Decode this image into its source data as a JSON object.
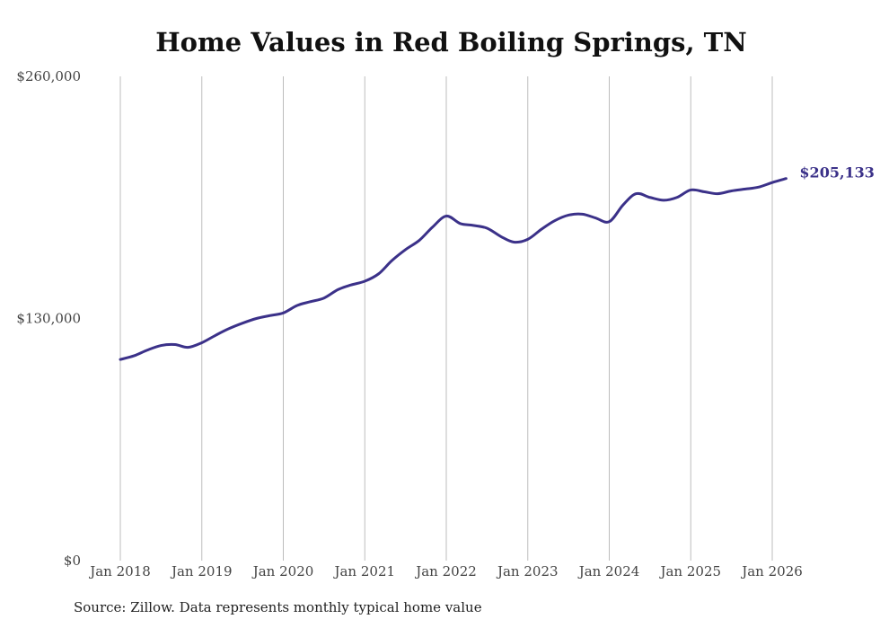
{
  "chart_data": {
    "type": "line",
    "title": "Home Values in Red Boiling Springs, TN",
    "xlabel": "",
    "ylabel": "",
    "ylim": [
      0,
      260000
    ],
    "y_ticks": [
      0,
      130000,
      260000
    ],
    "y_tick_labels": [
      "$0",
      "$130,000",
      "$260,000"
    ],
    "x_ticks": [
      "Jan 2018",
      "Jan 2019",
      "Jan 2020",
      "Jan 2021",
      "Jan 2022",
      "Jan 2023",
      "Jan 2024",
      "Jan 2025",
      "Jan 2026"
    ],
    "x_tick_positions": [
      2018,
      2019,
      2020,
      2021,
      2022,
      2023,
      2024,
      2025,
      2026
    ],
    "grid": "vertical",
    "line_color": "#3b3189",
    "series": [
      {
        "name": "Typical home value",
        "x": [
          2018.0,
          2018.17,
          2018.33,
          2018.5,
          2018.67,
          2018.83,
          2019.0,
          2019.17,
          2019.33,
          2019.5,
          2019.67,
          2019.83,
          2020.0,
          2020.17,
          2020.33,
          2020.5,
          2020.67,
          2020.83,
          2021.0,
          2021.17,
          2021.33,
          2021.5,
          2021.67,
          2021.83,
          2022.0,
          2022.17,
          2022.33,
          2022.5,
          2022.67,
          2022.83,
          2023.0,
          2023.17,
          2023.33,
          2023.5,
          2023.67,
          2023.83,
          2024.0,
          2024.17,
          2024.33,
          2024.5,
          2024.67,
          2024.83,
          2025.0,
          2025.17,
          2025.33,
          2025.5,
          2025.67,
          2025.83,
          2026.0,
          2026.17
        ],
        "values": [
          108000,
          110000,
          113000,
          115500,
          116000,
          114500,
          117000,
          121000,
          124500,
          127500,
          130000,
          131500,
          133000,
          137000,
          139000,
          141000,
          145500,
          148000,
          150000,
          154000,
          161000,
          167000,
          172000,
          179000,
          185000,
          181000,
          180000,
          178500,
          174000,
          171000,
          172500,
          178000,
          182500,
          185500,
          186000,
          184000,
          182000,
          191000,
          197000,
          195000,
          193500,
          195000,
          199000,
          198000,
          197000,
          198500,
          199500,
          200500,
          203000,
          205133
        ]
      }
    ],
    "end_label": "$205,133"
  },
  "source_note": "Source: Zillow. Data represents monthly typical home value"
}
